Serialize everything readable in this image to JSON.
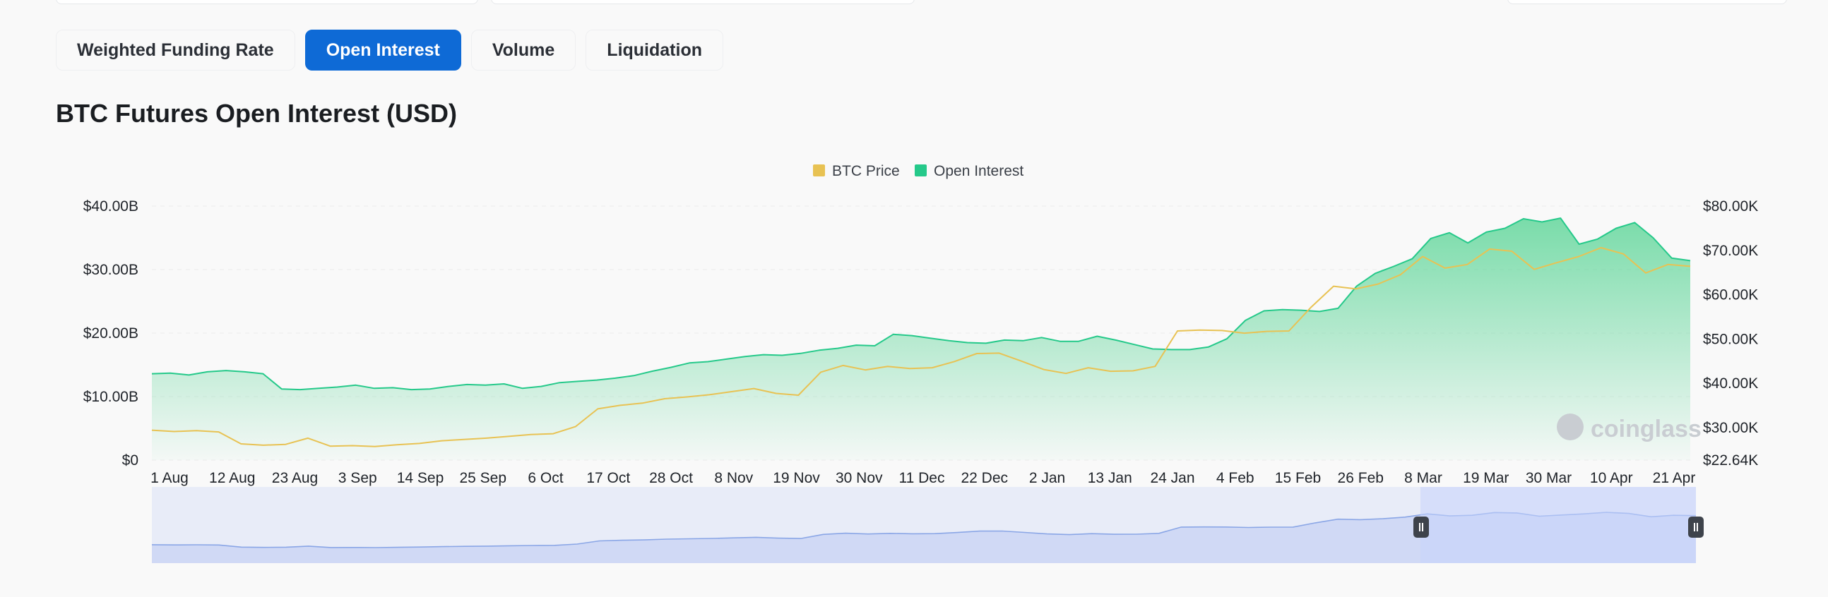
{
  "tabs": [
    {
      "label": "Weighted Funding Rate",
      "active": false
    },
    {
      "label": "Open Interest",
      "active": true
    },
    {
      "label": "Volume",
      "active": false
    },
    {
      "label": "Liquidation",
      "active": false
    }
  ],
  "section_title": "BTC Futures Open Interest (USD)",
  "watermark": "coinglass",
  "colors": {
    "accent": "#0e6ad6",
    "btc_price": "#e8c253",
    "open_interest": "#25c98a",
    "navigator": "#8aa6e6"
  },
  "chart_data": {
    "type": "area",
    "title": "BTC Futures Open Interest (USD)",
    "legend_position": "top-center",
    "grid": true,
    "x_tick_labels": [
      "1 Aug",
      "12 Aug",
      "23 Aug",
      "3 Sep",
      "14 Sep",
      "25 Sep",
      "6 Oct",
      "17 Oct",
      "28 Oct",
      "8 Nov",
      "19 Nov",
      "30 Nov",
      "11 Dec",
      "22 Dec",
      "2 Jan",
      "13 Jan",
      "24 Jan",
      "4 Feb",
      "15 Feb",
      "26 Feb",
      "8 Mar",
      "19 Mar",
      "30 Mar",
      "10 Apr",
      "21 Apr"
    ],
    "y_left": {
      "ticks": [
        0,
        10,
        20,
        30,
        40
      ],
      "tick_labels": [
        "$0",
        "$10.00B",
        "$20.00B",
        "$30.00B",
        "$40.00B"
      ],
      "range": [
        0,
        40
      ],
      "unit": "B USD"
    },
    "y_right": {
      "ticks": [
        22.64,
        30,
        40,
        50,
        60,
        70,
        80
      ],
      "tick_labels": [
        "$22.64K",
        "$30.00K",
        "$40.00K",
        "$50.00K",
        "$60.00K",
        "$70.00K",
        "$80.00K"
      ],
      "range": [
        22.64,
        80
      ],
      "unit": "K USD"
    },
    "series": [
      {
        "name": "BTC Price",
        "axis": "right",
        "values": [
          29.4,
          29.1,
          29.3,
          29.0,
          26.3,
          26.0,
          26.2,
          27.6,
          25.8,
          25.9,
          25.7,
          26.1,
          26.4,
          27.0,
          27.3,
          27.6,
          28.0,
          28.4,
          28.6,
          30.2,
          34.2,
          35.0,
          35.5,
          36.5,
          36.9,
          37.4,
          38.1,
          38.8,
          37.7,
          37.3,
          42.5,
          44.0,
          43.0,
          43.8,
          43.3,
          43.5,
          44.9,
          46.7,
          46.8,
          45.0,
          43.1,
          42.2,
          43.5,
          42.7,
          42.8,
          43.8,
          51.8,
          52.0,
          51.9,
          51.3,
          51.7,
          51.8,
          57.2,
          61.9,
          61.3,
          62.4,
          64.5,
          68.6,
          66.0,
          66.8,
          70.3,
          69.8,
          65.7,
          67.2,
          68.6,
          70.6,
          69.2,
          64.9,
          66.8,
          66.4
        ]
      },
      {
        "name": "Open Interest",
        "axis": "left",
        "values": [
          13.6,
          13.7,
          13.4,
          13.9,
          14.1,
          13.9,
          13.6,
          11.2,
          11.1,
          11.3,
          11.5,
          11.8,
          11.3,
          11.4,
          11.1,
          11.2,
          11.6,
          11.9,
          11.8,
          12.0,
          11.3,
          11.6,
          12.2,
          12.4,
          12.6,
          12.9,
          13.3,
          14.0,
          14.6,
          15.3,
          15.5,
          15.9,
          16.3,
          16.6,
          16.5,
          16.8,
          17.3,
          17.6,
          18.1,
          18.0,
          19.8,
          19.6,
          19.2,
          18.8,
          18.5,
          18.4,
          18.9,
          18.8,
          19.3,
          18.7,
          18.7,
          19.5,
          18.9,
          18.2,
          17.5,
          17.4,
          17.4,
          17.8,
          19.1,
          22.0,
          23.5,
          23.7,
          23.6,
          23.4,
          23.9,
          27.4,
          29.4,
          30.5,
          31.7,
          34.9,
          35.8,
          34.2,
          35.9,
          36.5,
          38.0,
          37.5,
          38.1,
          34.0,
          34.8,
          36.5,
          37.4,
          35.0,
          31.8,
          31.4
        ]
      }
    ]
  }
}
